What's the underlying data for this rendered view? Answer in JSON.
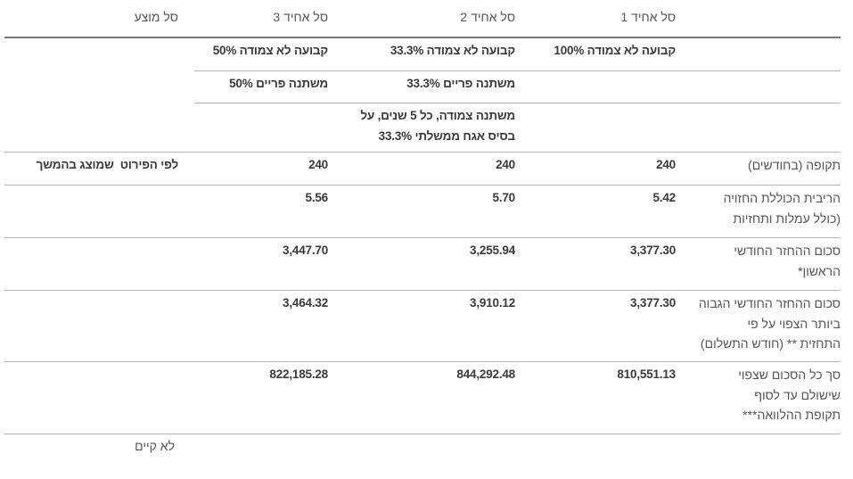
{
  "headers": [
    "סל אחיד 1",
    "סל אחיד 2",
    "סל אחיד 3",
    "סל מוצע"
  ],
  "track_rows": [
    [
      "קבועה לא צמודה 100%",
      "קבועה לא צמודה 33.3%",
      "קבועה לא צמודה 50%"
    ],
    [
      "",
      "משתנה פריים 33.3%",
      "משתנה פריים 50%"
    ],
    [
      "",
      "משתנה צמודה, כל 5 שנים, על\nבסיס אגח ממשלתי 33.3%",
      ""
    ]
  ],
  "rows": [
    {
      "label": "תקופה (בחודשים)",
      "values": [
        "240",
        "240",
        "240",
        "לפי הפירוט  שמוצג בהמשך"
      ]
    },
    {
      "label": "הריבית הכוללת החזויה\n(כולל עמלות ותחזיות",
      "values": [
        "5.42",
        "5.70",
        "5.56",
        ""
      ]
    },
    {
      "label": "סכום ההחזר החודשי\nהראשון*",
      "values": [
        "3,377.30",
        "3,255.94",
        "3,447.70",
        ""
      ]
    },
    {
      "label": "סכום ההחזר החודשי הגבוה\nביותר הצפוי על פי\nהתחזית ** (חודש התשלום)",
      "values": [
        "3,377.30",
        "3,910.12",
        "3,464.32",
        ""
      ]
    },
    {
      "label": "סך כל הסכום שצפוי\nשישולם עד לסוף\nתקופת ההלוואה***",
      "values": [
        "810,551.13",
        "844,292.48",
        "822,185.28",
        ""
      ]
    }
  ],
  "footer_note": "לא קיים"
}
